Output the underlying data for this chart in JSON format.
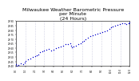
{
  "title": "Milwaukee Weather Barometric Pressure\nper Minute\n(24 Hours)",
  "title_fontsize": 4.5,
  "background_color": "#ffffff",
  "plot_bg_color": "#ffffff",
  "dot_color": "#0000cc",
  "dot_size": 1.0,
  "xlim": [
    0,
    1440
  ],
  "ylim": [
    29.4,
    29.9
  ],
  "yticks": [
    29.4,
    29.45,
    29.5,
    29.55,
    29.6,
    29.65,
    29.7,
    29.75,
    29.8,
    29.85,
    29.9
  ],
  "ytick_labels": [
    "29.40",
    "29.45",
    "29.50",
    "29.55",
    "29.60",
    "29.65",
    "29.70",
    "29.75",
    "29.80",
    "29.85",
    "29.90"
  ],
  "xtick_interval": 120,
  "xtick_labels": [
    "0:0",
    "1:0",
    "2:0",
    "3:0",
    "4:0",
    "5:0",
    "6:0",
    "7:0",
    "8:0",
    "9:0",
    "10:0",
    "11:0",
    "12:0",
    "1:0",
    "2:0",
    "3:0",
    "4:0",
    "5:0",
    "6:0",
    "7:0",
    "8:0",
    "9:0",
    "10:0",
    "11:0",
    "3"
  ],
  "grid_color": "#aaaacc",
  "grid_style": "dotted",
  "x_data": [
    0,
    10,
    30,
    60,
    90,
    110,
    120,
    150,
    180,
    210,
    240,
    260,
    280,
    300,
    330,
    360,
    390,
    420,
    450,
    480,
    510,
    540,
    570,
    600,
    630,
    660,
    690,
    700,
    710,
    730,
    760,
    790,
    820,
    840,
    860,
    880,
    910,
    940,
    970,
    1000,
    1030,
    1060,
    1090,
    1120,
    1150,
    1180,
    1200,
    1220,
    1250,
    1280,
    1310,
    1340,
    1370,
    1400,
    1430,
    1440
  ],
  "y_data": [
    29.42,
    29.4,
    29.41,
    29.43,
    29.42,
    29.44,
    29.46,
    29.47,
    29.48,
    29.5,
    29.51,
    29.52,
    29.53,
    29.55,
    29.56,
    29.57,
    29.58,
    29.59,
    29.57,
    29.58,
    29.6,
    29.61,
    29.62,
    29.63,
    29.64,
    29.64,
    29.65,
    29.63,
    29.61,
    29.62,
    29.63,
    29.64,
    29.65,
    29.67,
    29.68,
    29.7,
    29.72,
    29.73,
    29.74,
    29.75,
    29.76,
    29.77,
    29.78,
    29.79,
    29.8,
    29.81,
    29.83,
    29.84,
    29.85,
    29.86,
    29.87,
    29.88,
    29.88,
    29.87,
    29.88,
    29.89
  ]
}
